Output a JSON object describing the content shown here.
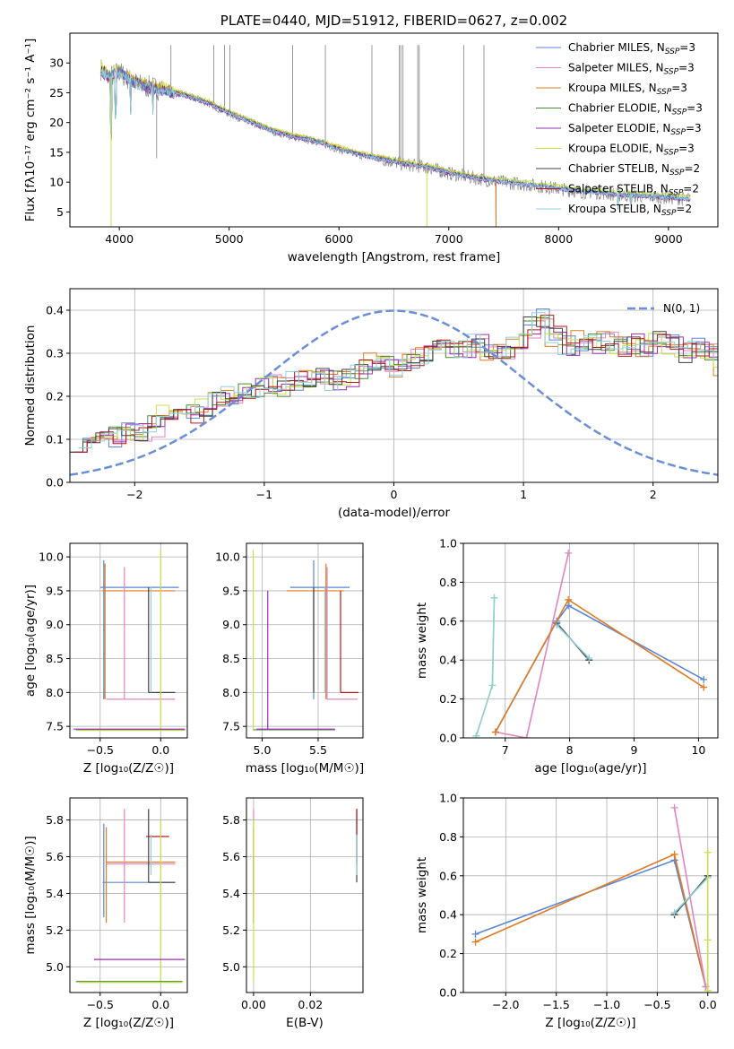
{
  "colors": {
    "chabrier_miles": "#5b86d6",
    "salpeter_miles": "#e385c0",
    "kroupa_miles": "#e07b23",
    "chabrier_elodie": "#4a8a3a",
    "salpeter_elodie": "#9b2fb5",
    "kroupa_elodie": "#c8e048",
    "chabrier_stelib": "#404040",
    "salpeter_stelib": "#b01c1c",
    "kroupa_stelib": "#8fd0d8",
    "spectrum_gray": "#808080",
    "normal_curve": "#6a8fd8"
  },
  "chart_data": [
    {
      "id": "spectrum",
      "type": "line",
      "title": "PLATE=0440, MJD=51912, FIBERID=0627, z=0.002",
      "xlabel": "wavelength [Angstrom, rest frame]",
      "ylabel": "Flux [fλ10⁻¹⁷ erg cm⁻² s⁻¹ A⁻¹]",
      "xlim": [
        3550,
        9450
      ],
      "ylim": [
        2.5,
        35
      ],
      "xticks": [
        "4000",
        "5000",
        "6000",
        "7000",
        "8000",
        "9000"
      ],
      "yticks": [
        "5",
        "10",
        "15",
        "20",
        "25",
        "30"
      ],
      "legend_position": "top-right",
      "legend": [
        {
          "label": "Chabrier MILES, N",
          "sub": "SSP",
          "suffix": "=3",
          "color_key": "chabrier_miles"
        },
        {
          "label": "Salpeter MILES, N",
          "sub": "SSP",
          "suffix": "=3",
          "color_key": "salpeter_miles"
        },
        {
          "label": "Kroupa MILES, N",
          "sub": "SSP",
          "suffix": "=3",
          "color_key": "kroupa_miles"
        },
        {
          "label": "Chabrier ELODIE, N",
          "sub": "SSP",
          "suffix": "=3",
          "color_key": "chabrier_elodie"
        },
        {
          "label": "Salpeter ELODIE, N",
          "sub": "SSP",
          "suffix": "=3",
          "color_key": "salpeter_elodie"
        },
        {
          "label": "Kroupa ELODIE, N",
          "sub": "SSP",
          "suffix": "=3",
          "color_key": "kroupa_elodie"
        },
        {
          "label": "Chabrier STELIB, N",
          "sub": "SSP",
          "suffix": "=2",
          "color_key": "chabrier_stelib"
        },
        {
          "label": "Salpeter STELIB, N",
          "sub": "SSP",
          "suffix": "=2",
          "color_key": "salpeter_stelib"
        },
        {
          "label": "Kroupa STELIB, N",
          "sub": "SSP",
          "suffix": "=2",
          "color_key": "kroupa_stelib"
        }
      ],
      "continuum": {
        "x": [
          3830,
          3900,
          4000,
          4100,
          4200,
          4400,
          4600,
          4800,
          5000,
          5200,
          5400,
          5600,
          5800,
          6000,
          6200,
          6400,
          6600,
          6800,
          7000,
          7200,
          7400,
          7600,
          7800,
          8000,
          8200,
          8400,
          8600,
          8800,
          9000,
          9200
        ],
        "y": [
          29,
          27.5,
          28.5,
          27,
          26.2,
          25.5,
          24.5,
          23.3,
          21.5,
          20,
          18.5,
          17.5,
          16.8,
          15.5,
          14.5,
          13.8,
          13,
          12.5,
          11.5,
          10.8,
          10.2,
          9.8,
          9.4,
          8.9,
          8.4,
          8.2,
          7.8,
          7.6,
          7.4,
          7.1
        ]
      },
      "emission_lines": [
        {
          "x": 4340,
          "y": 14
        },
        {
          "x": 4470,
          "y": 33
        },
        {
          "x": 4861,
          "y": 33
        },
        {
          "x": 4959,
          "y": 33
        },
        {
          "x": 5007,
          "y": 33
        },
        {
          "x": 5577,
          "y": 33
        },
        {
          "x": 5876,
          "y": 33
        },
        {
          "x": 6300,
          "y": 33
        },
        {
          "x": 6550,
          "y": 33
        },
        {
          "x": 6563,
          "y": 33
        },
        {
          "x": 6583,
          "y": 33
        },
        {
          "x": 6717,
          "y": 33
        },
        {
          "x": 6731,
          "y": 33
        },
        {
          "x": 7136,
          "y": 33
        },
        {
          "x": 7320,
          "y": 33
        }
      ]
    },
    {
      "id": "residuals",
      "type": "line",
      "xlabel": "(data-model)/error",
      "ylabel": "Normed distribution",
      "xlim": [
        -2.5,
        2.5
      ],
      "ylim": [
        0,
        0.45
      ],
      "xticks": [
        "−2",
        "−1",
        "0",
        "1",
        "2"
      ],
      "yticks": [
        "0.0",
        "0.1",
        "0.2",
        "0.3",
        "0.4"
      ],
      "grid": true,
      "legend_position": "top-right",
      "normal_label": "N(0, 1)",
      "hist_bin_width": 0.1,
      "hist_base": [
        0.095,
        0.105,
        0.11,
        0.105,
        0.12,
        0.12,
        0.13,
        0.155,
        0.17,
        0.16,
        0.17,
        0.19,
        0.2,
        0.21,
        0.22,
        0.23,
        0.22,
        0.235,
        0.24,
        0.24,
        0.235,
        0.24,
        0.26,
        0.28,
        0.275,
        0.27,
        0.29,
        0.3,
        0.31,
        0.305,
        0.315,
        0.32,
        0.3,
        0.31,
        0.33,
        0.36,
        0.38,
        0.34,
        0.32,
        0.33,
        0.32,
        0.33,
        0.315,
        0.32,
        0.31,
        0.33,
        0.32,
        0.3,
        0.31,
        0.3,
        0.27,
        0.25,
        0.24,
        0.22,
        0.21,
        0.19,
        0.2,
        0.18,
        0.16,
        0.17,
        0.15,
        0.14,
        0.13,
        0.12,
        0.11,
        0.09,
        0.085,
        0.075,
        0.08,
        0.07,
        0.065,
        0.06,
        0.055,
        0.05,
        0.045,
        0.04,
        0.035,
        0.035,
        0.03,
        0.025,
        0.03,
        0.02,
        0.02,
        0.015,
        0.02,
        0.015,
        0.015,
        0.02,
        0.01,
        0.015,
        0.01,
        0.015,
        0.01,
        0.01,
        0.015,
        0.01,
        0.01,
        0.01,
        0.01,
        0.01
      ]
    },
    {
      "id": "age-vs-z",
      "type": "scatter",
      "xlabel": "Z [log₁₀(Z/Z☉)]",
      "ylabel": "age  [log₁₀(age/yr)]",
      "xlim": [
        -0.75,
        0.22
      ],
      "ylim": [
        7.33,
        10.2
      ],
      "xticks": [
        "−0.5",
        "0.0"
      ],
      "yticks": [
        "7.5",
        "8.0",
        "8.5",
        "9.0",
        "9.5",
        "10.0"
      ],
      "grid": true,
      "segments": [
        {
          "c": "chabrier_miles",
          "x1": -0.5,
          "x2": 0.15,
          "y1": 9.55,
          "y2": 9.55
        },
        {
          "c": "chabrier_miles",
          "x1": -0.47,
          "x2": -0.47,
          "y1": 7.9,
          "y2": 9.95
        },
        {
          "c": "kroupa_miles",
          "x1": -0.48,
          "x2": 0.12,
          "y1": 9.5,
          "y2": 9.5
        },
        {
          "c": "kroupa_miles",
          "x1": -0.46,
          "x2": -0.46,
          "y1": 7.9,
          "y2": 9.9
        },
        {
          "c": "salpeter_miles",
          "x1": -0.45,
          "x2": 0.12,
          "y1": 7.9,
          "y2": 7.9
        },
        {
          "c": "salpeter_miles",
          "x1": -0.3,
          "x2": -0.3,
          "y1": 7.9,
          "y2": 9.85
        },
        {
          "c": "chabrier_stelib",
          "x1": -0.1,
          "x2": 0.12,
          "y1": 8.0,
          "y2": 8.0
        },
        {
          "c": "chabrier_stelib",
          "x1": -0.1,
          "x2": -0.1,
          "y1": 8.0,
          "y2": 9.55
        },
        {
          "c": "kroupa_stelib",
          "x1": -0.08,
          "x2": -0.08,
          "y1": 8.0,
          "y2": 9.55
        },
        {
          "c": "kroupa_elodie",
          "x1": 0.0,
          "x2": 0.0,
          "y1": 7.45,
          "y2": 10.1
        },
        {
          "c": "chabrier_elodie",
          "x1": -0.7,
          "x2": 0.2,
          "y1": 7.45,
          "y2": 7.45
        },
        {
          "c": "salpeter_elodie",
          "x1": -0.72,
          "x2": 0.2,
          "y1": 7.46,
          "y2": 7.46
        },
        {
          "c": "kroupa_elodie",
          "x1": -0.68,
          "x2": 0.18,
          "y1": 7.44,
          "y2": 7.44
        }
      ]
    },
    {
      "id": "age-vs-mass",
      "type": "scatter",
      "xlabel": "mass [log₁₀(M/M☉)]",
      "ylabel": "",
      "xlim": [
        4.86,
        5.9
      ],
      "ylim": [
        7.33,
        10.2
      ],
      "xticks": [
        "5.0",
        "5.5"
      ],
      "yticks": [
        "7.5",
        "8.0",
        "8.5",
        "9.0",
        "9.5",
        "10.0"
      ],
      "grid": true,
      "segments": [
        {
          "c": "chabrier_miles",
          "x1": 5.25,
          "x2": 5.78,
          "y1": 9.55,
          "y2": 9.55
        },
        {
          "c": "chabrier_miles",
          "x1": 5.46,
          "x2": 5.46,
          "y1": 7.9,
          "y2": 9.95
        },
        {
          "c": "kroupa_miles",
          "x1": 5.22,
          "x2": 5.73,
          "y1": 9.5,
          "y2": 9.5
        },
        {
          "c": "kroupa_miles",
          "x1": 5.57,
          "x2": 5.57,
          "y1": 7.9,
          "y2": 9.9
        },
        {
          "c": "salpeter_miles",
          "x1": 5.58,
          "x2": 5.85,
          "y1": 7.9,
          "y2": 7.9
        },
        {
          "c": "salpeter_miles",
          "x1": 5.58,
          "x2": 5.58,
          "y1": 7.9,
          "y2": 9.85
        },
        {
          "c": "chabrier_stelib",
          "x1": 5.46,
          "x2": 5.46,
          "y1": 8.0,
          "y2": 9.55
        },
        {
          "c": "kroupa_stelib",
          "x1": 5.56,
          "x2": 5.56,
          "y1": 8.0,
          "y2": 9.55
        },
        {
          "c": "salpeter_stelib",
          "x1": 5.7,
          "x2": 5.86,
          "y1": 8.0,
          "y2": 8.0
        },
        {
          "c": "salpeter_stelib",
          "x1": 5.7,
          "x2": 5.7,
          "y1": 8.0,
          "y2": 9.5
        },
        {
          "c": "salpeter_elodie",
          "x1": 5.05,
          "x2": 5.05,
          "y1": 7.45,
          "y2": 9.5
        },
        {
          "c": "kroupa_elodie",
          "x1": 4.92,
          "x2": 4.92,
          "y1": 7.45,
          "y2": 10.1
        },
        {
          "c": "chabrier_elodie",
          "x1": 4.92,
          "x2": 5.65,
          "y1": 7.45,
          "y2": 7.45
        },
        {
          "c": "salpeter_elodie",
          "x1": 4.95,
          "x2": 5.65,
          "y1": 7.46,
          "y2": 7.46
        }
      ]
    },
    {
      "id": "weight-vs-age",
      "type": "line",
      "xlabel": "age  [log₁₀(age/yr)]",
      "ylabel": "mass weight",
      "xlim": [
        6.35,
        10.3
      ],
      "ylim": [
        0,
        1
      ],
      "xticks": [
        "7",
        "8",
        "9",
        "10"
      ],
      "yticks": [
        "0.0",
        "0.2",
        "0.4",
        "0.6",
        "0.8",
        "1.0"
      ],
      "grid": true,
      "series": [
        {
          "c": "kroupa_elodie",
          "x": [
            6.55,
            6.8,
            6.83
          ],
          "y": [
            0.01,
            0.27,
            0.72
          ]
        },
        {
          "c": "kroupa_stelib",
          "x": [
            6.55,
            6.8,
            6.83
          ],
          "y": [
            0.01,
            0.27,
            0.72
          ]
        },
        {
          "c": "salpeter_miles",
          "x": [
            6.85,
            7.33,
            7.98
          ],
          "y": [
            0.03,
            0.0,
            0.95
          ]
        },
        {
          "c": "chabrier_stelib",
          "x": [
            7.8,
            8.3
          ],
          "y": [
            0.59,
            0.4
          ]
        },
        {
          "c": "kroupa_stelib",
          "x": [
            7.8,
            8.3
          ],
          "y": [
            0.58,
            0.41
          ]
        },
        {
          "c": "chabrier_miles",
          "x": [
            6.85,
            7.8,
            7.98,
            10.08
          ],
          "y": [
            0.03,
            0.6,
            0.68,
            0.3
          ]
        },
        {
          "c": "kroupa_miles",
          "x": [
            6.85,
            7.98,
            10.08
          ],
          "y": [
            0.03,
            0.71,
            0.26
          ]
        }
      ]
    },
    {
      "id": "mass-vs-z",
      "type": "scatter",
      "xlabel": "Z [log₁₀(Z/Z☉)]",
      "ylabel": "mass [log₁₀(M/M☉)]",
      "xlim": [
        -0.75,
        0.22
      ],
      "ylim": [
        4.86,
        5.92
      ],
      "xticks": [
        "−0.5",
        "0.0"
      ],
      "yticks": [
        "5.0",
        "5.2",
        "5.4",
        "5.6",
        "5.8"
      ],
      "grid": true,
      "segments": [
        {
          "c": "chabrier_miles",
          "x1": -0.48,
          "x2": 0.12,
          "y1": 5.46,
          "y2": 5.46
        },
        {
          "c": "chabrier_miles",
          "x1": -0.47,
          "x2": -0.47,
          "y1": 5.27,
          "y2": 5.78
        },
        {
          "c": "kroupa_miles",
          "x1": -0.45,
          "x2": 0.12,
          "y1": 5.57,
          "y2": 5.57
        },
        {
          "c": "kroupa_miles",
          "x1": -0.45,
          "x2": -0.45,
          "y1": 5.24,
          "y2": 5.76
        },
        {
          "c": "salpeter_miles",
          "x1": -0.45,
          "x2": 0.12,
          "y1": 5.56,
          "y2": 5.56
        },
        {
          "c": "salpeter_miles",
          "x1": -0.3,
          "x2": -0.3,
          "y1": 5.24,
          "y2": 5.86
        },
        {
          "c": "chabrier_stelib",
          "x1": -0.1,
          "x2": 0.12,
          "y1": 5.46,
          "y2": 5.46
        },
        {
          "c": "chabrier_stelib",
          "x1": -0.1,
          "x2": -0.1,
          "y1": 5.46,
          "y2": 5.86
        },
        {
          "c": "salpeter_stelib",
          "x1": -0.12,
          "x2": 0.07,
          "y1": 5.71,
          "y2": 5.71
        },
        {
          "c": "kroupa_stelib",
          "x1": -0.08,
          "x2": -0.08,
          "y1": 5.5,
          "y2": 5.72
        },
        {
          "c": "kroupa_elodie",
          "x1": 0.0,
          "x2": 0.0,
          "y1": 4.92,
          "y2": 5.8
        },
        {
          "c": "salpeter_elodie",
          "x1": -0.55,
          "x2": 0.2,
          "y1": 5.04,
          "y2": 5.04
        },
        {
          "c": "chabrier_elodie",
          "x1": -0.7,
          "x2": 0.18,
          "y1": 4.92,
          "y2": 4.92
        },
        {
          "c": "kroupa_elodie",
          "x1": -0.68,
          "x2": 0.18,
          "y1": 4.915,
          "y2": 4.915
        }
      ]
    },
    {
      "id": "mass-vs-ebv",
      "type": "scatter",
      "xlabel": "E(B-V)",
      "ylabel": "",
      "xlim": [
        -0.0025,
        0.0385
      ],
      "ylim": [
        4.86,
        5.92
      ],
      "xticks": [
        "0.00",
        "0.02"
      ],
      "yticks": [
        "5.0",
        "5.2",
        "5.4",
        "5.6",
        "5.8"
      ],
      "grid": true,
      "segments": [
        {
          "c": "salpeter_miles",
          "x1": 0.0,
          "x2": 0.0,
          "y1": 5.24,
          "y2": 5.86
        },
        {
          "c": "kroupa_miles",
          "x1": 0.0,
          "x2": 0.0,
          "y1": 5.24,
          "y2": 5.76
        },
        {
          "c": "salpeter_elodie",
          "x1": 0.0,
          "x2": 0.0,
          "y1": 5.4,
          "y2": 5.6
        },
        {
          "c": "kroupa_elodie",
          "x1": 0.0,
          "x2": 0.0,
          "y1": 4.92,
          "y2": 5.8
        },
        {
          "c": "chabrier_stelib",
          "x1": 0.0363,
          "x2": 0.0363,
          "y1": 5.46,
          "y2": 5.86
        },
        {
          "c": "salpeter_stelib",
          "x1": 0.0363,
          "x2": 0.0363,
          "y1": 5.56,
          "y2": 5.86
        },
        {
          "c": "kroupa_stelib",
          "x1": 0.0363,
          "x2": 0.0363,
          "y1": 5.5,
          "y2": 5.72
        }
      ]
    },
    {
      "id": "weight-vs-z",
      "type": "line",
      "xlabel": "Z [log₁₀(Z/Z☉)]",
      "ylabel": "mass weight",
      "xlim": [
        -2.42,
        0.1
      ],
      "ylim": [
        0,
        1
      ],
      "xticks": [
        "−2.0",
        "−1.5",
        "−1.0",
        "−0.5",
        "0.0"
      ],
      "yticks": [
        "0.0",
        "0.2",
        "0.4",
        "0.6",
        "0.8",
        "1.0"
      ],
      "grid": true,
      "series": [
        {
          "c": "chabrier_miles",
          "x": [
            -2.3,
            -0.33,
            -0.02
          ],
          "y": [
            0.3,
            0.68,
            0.03
          ]
        },
        {
          "c": "kroupa_miles",
          "x": [
            -2.3,
            -0.33,
            -0.02
          ],
          "y": [
            0.26,
            0.71,
            0.03
          ]
        },
        {
          "c": "salpeter_miles",
          "x": [
            -0.33,
            -0.02
          ],
          "y": [
            0.95,
            0.03
          ]
        },
        {
          "c": "chabrier_stelib",
          "x": [
            -0.33,
            0.0
          ],
          "y": [
            0.4,
            0.6
          ]
        },
        {
          "c": "kroupa_stelib",
          "x": [
            -0.33,
            0.0
          ],
          "y": [
            0.41,
            0.59
          ]
        },
        {
          "c": "kroupa_elodie",
          "x": [
            0.0,
            0.0,
            0.0
          ],
          "y": [
            0.01,
            0.27,
            0.72
          ]
        }
      ]
    }
  ]
}
